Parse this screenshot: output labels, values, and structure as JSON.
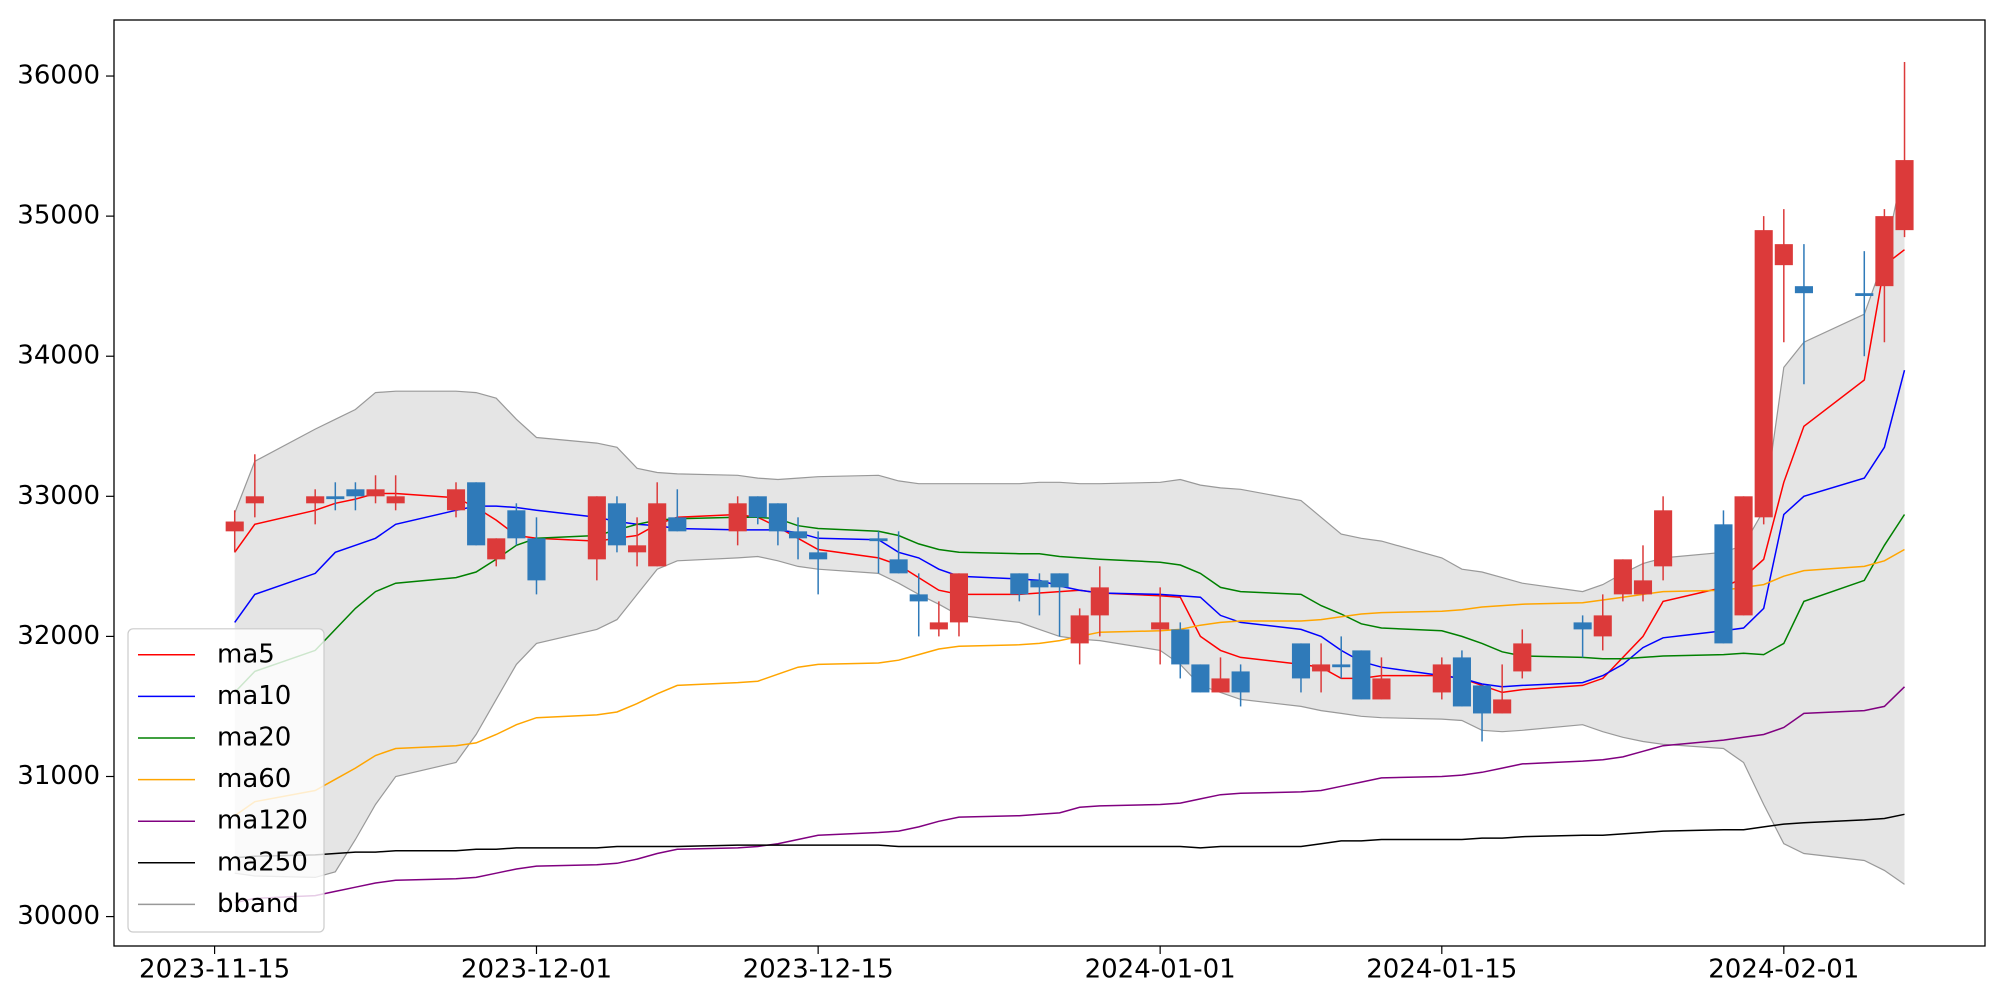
{
  "chart_data": {
    "type": "candlestick",
    "x": [
      "2023-11-16",
      "2023-11-17",
      "2023-11-20",
      "2023-11-21",
      "2023-11-22",
      "2023-11-23",
      "2023-11-24",
      "2023-11-27",
      "2023-11-28",
      "2023-11-29",
      "2023-11-30",
      "2023-12-01",
      "2023-12-04",
      "2023-12-05",
      "2023-12-06",
      "2023-12-07",
      "2023-12-08",
      "2023-12-11",
      "2023-12-12",
      "2023-12-13",
      "2023-12-14",
      "2023-12-15",
      "2023-12-18",
      "2023-12-19",
      "2023-12-20",
      "2023-12-21",
      "2023-12-22",
      "2023-12-25",
      "2023-12-26",
      "2023-12-27",
      "2023-12-28",
      "2023-12-29",
      "2024-01-01",
      "2024-01-02",
      "2024-01-03",
      "2024-01-04",
      "2024-01-05",
      "2024-01-08",
      "2024-01-09",
      "2024-01-10",
      "2024-01-11",
      "2024-01-12",
      "2024-01-15",
      "2024-01-16",
      "2024-01-17",
      "2024-01-18",
      "2024-01-19",
      "2024-01-22",
      "2024-01-23",
      "2024-01-24",
      "2024-01-25",
      "2024-01-26",
      "2024-01-29",
      "2024-01-30",
      "2024-01-31",
      "2024-02-01",
      "2024-02-02",
      "2024-02-05",
      "2024-02-06",
      "2024-02-07"
    ],
    "open": [
      32750,
      32950,
      32950,
      33000,
      33050,
      33000,
      32950,
      32900,
      33100,
      32550,
      32900,
      32700,
      32550,
      32950,
      32600,
      32500,
      32850,
      32750,
      33000,
      32950,
      32750,
      32600,
      32700,
      32550,
      32300,
      32050,
      32100,
      32450,
      32400,
      32450,
      31950,
      32150,
      32050,
      32050,
      31800,
      31600,
      31750,
      31950,
      31750,
      31800,
      31900,
      31550,
      31600,
      31850,
      31650,
      31450,
      31750,
      32100,
      32000,
      32300,
      32300,
      32500,
      32800,
      32150,
      32850,
      34650,
      34500,
      34450,
      34500,
      34900
    ],
    "high": [
      32900,
      33300,
      33050,
      33100,
      33100,
      33150,
      33150,
      33100,
      33100,
      32700,
      32950,
      32850,
      33000,
      33000,
      32850,
      33100,
      33050,
      33000,
      33000,
      32950,
      32850,
      32750,
      32750,
      32750,
      32450,
      32250,
      32450,
      32450,
      32450,
      32450,
      32200,
      32500,
      32350,
      32100,
      31800,
      31850,
      31800,
      31950,
      31950,
      32000,
      31900,
      31850,
      31850,
      31900,
      31650,
      31800,
      32050,
      32150,
      32300,
      32550,
      32650,
      33000,
      32900,
      33000,
      35000,
      35050,
      34800,
      34750,
      35050,
      36100
    ],
    "low": [
      32600,
      32850,
      32800,
      32900,
      32900,
      32950,
      32900,
      32850,
      32650,
      32500,
      32650,
      32300,
      32400,
      32600,
      32500,
      32500,
      32750,
      32650,
      32800,
      32650,
      32550,
      32300,
      32450,
      32450,
      32000,
      32000,
      32000,
      32250,
      32150,
      32000,
      31800,
      32000,
      31800,
      31700,
      31600,
      31600,
      31500,
      31600,
      31600,
      31700,
      31550,
      31550,
      31550,
      31500,
      31250,
      31450,
      31700,
      31850,
      31900,
      32250,
      32250,
      32400,
      31950,
      32150,
      32800,
      34100,
      33800,
      34000,
      34100,
      34850
    ],
    "close": [
      32820,
      33000,
      33000,
      32980,
      33000,
      33050,
      33000,
      33050,
      32650,
      32700,
      32700,
      32400,
      33000,
      32650,
      32650,
      32950,
      32750,
      32950,
      32850,
      32750,
      32700,
      32550,
      32680,
      32450,
      32250,
      32100,
      32450,
      32300,
      32350,
      32350,
      32150,
      32350,
      32100,
      31800,
      31600,
      31700,
      31600,
      31700,
      31800,
      31780,
      31550,
      31700,
      31800,
      31500,
      31450,
      31550,
      31950,
      32050,
      32150,
      32550,
      32400,
      32900,
      31950,
      33000,
      34900,
      34800,
      34450,
      34430,
      35000,
      35400
    ],
    "up_color": "#dc3a3a",
    "down_color": "#2f7ab9",
    "series": [
      {
        "name": "ma5",
        "color": "#ff0000",
        "values": [
          32600,
          32800,
          32900,
          32950,
          32980,
          33020,
          33020,
          32990,
          32920,
          32830,
          32720,
          32700,
          32680,
          32700,
          32720,
          32800,
          32850,
          32870,
          32850,
          32780,
          32700,
          32620,
          32560,
          32510,
          32420,
          32330,
          32300,
          32300,
          32310,
          32320,
          32330,
          32310,
          32290,
          32280,
          32000,
          31900,
          31850,
          31800,
          31780,
          31700,
          31700,
          31720,
          31720,
          31700,
          31650,
          31600,
          31620,
          31650,
          31700,
          31850,
          32000,
          32250,
          32350,
          32420,
          32550,
          33100,
          33500,
          33830,
          34650,
          34760
        ]
      },
      {
        "name": "ma10",
        "color": "#0000ff",
        "values": [
          32100,
          32300,
          32450,
          32600,
          32650,
          32700,
          32800,
          32900,
          32930,
          32930,
          32920,
          32900,
          32850,
          32820,
          32800,
          32790,
          32770,
          32760,
          32760,
          32760,
          32740,
          32700,
          32690,
          32600,
          32560,
          32480,
          32430,
          32410,
          32400,
          32360,
          32330,
          32310,
          32300,
          32290,
          32280,
          32150,
          32100,
          32050,
          32000,
          31900,
          31820,
          31780,
          31720,
          31700,
          31660,
          31640,
          31650,
          31670,
          31720,
          31800,
          31920,
          31990,
          32040,
          32060,
          32200,
          32870,
          33000,
          33130,
          33350,
          33900
        ]
      },
      {
        "name": "ma20",
        "color": "#008000",
        "values": [
          31600,
          31750,
          31900,
          32050,
          32200,
          32320,
          32380,
          32420,
          32460,
          32550,
          32650,
          32700,
          32720,
          32760,
          32800,
          32830,
          32840,
          32850,
          32850,
          32840,
          32790,
          32770,
          32750,
          32720,
          32660,
          32620,
          32600,
          32590,
          32590,
          32570,
          32560,
          32550,
          32530,
          32510,
          32450,
          32350,
          32320,
          32300,
          32220,
          32160,
          32090,
          32060,
          32040,
          32000,
          31950,
          31890,
          31860,
          31850,
          31840,
          31840,
          31850,
          31860,
          31870,
          31880,
          31870,
          31950,
          32250,
          32400,
          32650,
          32870
        ]
      },
      {
        "name": "ma60",
        "color": "#ffa500",
        "values": [
          30720,
          30820,
          30900,
          30980,
          31060,
          31150,
          31200,
          31220,
          31240,
          31300,
          31370,
          31420,
          31440,
          31460,
          31520,
          31590,
          31650,
          31670,
          31680,
          31730,
          31780,
          31800,
          31810,
          31830,
          31870,
          31910,
          31930,
          31940,
          31950,
          31970,
          32000,
          32030,
          32040,
          32050,
          32080,
          32100,
          32110,
          32110,
          32120,
          32140,
          32160,
          32170,
          32180,
          32190,
          32210,
          32220,
          32230,
          32240,
          32260,
          32280,
          32300,
          32320,
          32330,
          32350,
          32370,
          32430,
          32470,
          32500,
          32540,
          32620
        ]
      },
      {
        "name": "ma120",
        "color": "#800080",
        "values": [
          30100,
          30130,
          30150,
          30180,
          30210,
          30240,
          30260,
          30270,
          30280,
          30310,
          30340,
          30360,
          30370,
          30380,
          30410,
          30450,
          30480,
          30490,
          30500,
          30520,
          30550,
          30580,
          30600,
          30610,
          30640,
          30680,
          30710,
          30720,
          30730,
          30740,
          30780,
          30790,
          30800,
          30810,
          30840,
          30870,
          30880,
          30890,
          30900,
          30930,
          30960,
          30990,
          31000,
          31010,
          31030,
          31060,
          31090,
          31110,
          31120,
          31140,
          31180,
          31220,
          31260,
          31280,
          31300,
          31350,
          31450,
          31470,
          31500,
          31640
        ]
      },
      {
        "name": "ma250",
        "color": "#000000",
        "values": [
          30420,
          30430,
          30440,
          30450,
          30460,
          30460,
          30470,
          30470,
          30480,
          30480,
          30490,
          30490,
          30490,
          30500,
          30500,
          30500,
          30500,
          30510,
          30510,
          30510,
          30510,
          30510,
          30510,
          30500,
          30500,
          30500,
          30500,
          30500,
          30500,
          30500,
          30500,
          30500,
          30500,
          30500,
          30490,
          30500,
          30500,
          30500,
          30520,
          30540,
          30540,
          30550,
          30550,
          30550,
          30560,
          30560,
          30570,
          30580,
          30580,
          30590,
          30600,
          30610,
          30620,
          30620,
          30640,
          30660,
          30670,
          30690,
          30700,
          30730
        ]
      }
    ],
    "bband": {
      "name": "bband",
      "color": "#999999",
      "fill": "#e5e5e5",
      "upper": [
        32880,
        33250,
        33480,
        33550,
        33620,
        33740,
        33750,
        33750,
        33740,
        33700,
        33550,
        33420,
        33380,
        33350,
        33200,
        33170,
        33160,
        33150,
        33130,
        33120,
        33130,
        33140,
        33150,
        33110,
        33090,
        33090,
        33090,
        33090,
        33100,
        33100,
        33090,
        33090,
        33100,
        33120,
        33080,
        33060,
        33050,
        32970,
        32850,
        32730,
        32700,
        32680,
        32560,
        32480,
        32460,
        32420,
        32380,
        32320,
        32370,
        32450,
        32520,
        32560,
        32600,
        32650,
        32900,
        33920,
        34100,
        34300,
        34700,
        35380
      ],
      "lower": [
        30310,
        30290,
        30280,
        30320,
        30550,
        30800,
        31000,
        31100,
        31300,
        31550,
        31800,
        31950,
        32050,
        32120,
        32300,
        32480,
        32540,
        32560,
        32570,
        32540,
        32500,
        32480,
        32450,
        32380,
        32300,
        32230,
        32150,
        32100,
        32050,
        32000,
        31980,
        31970,
        31900,
        31800,
        31650,
        31600,
        31550,
        31500,
        31470,
        31450,
        31430,
        31420,
        31410,
        31400,
        31330,
        31320,
        31330,
        31370,
        31320,
        31280,
        31250,
        31230,
        31200,
        31100,
        30800,
        30520,
        30450,
        30400,
        30330,
        30230
      ]
    },
    "xlim": [
      "2023-11-10",
      "2024-02-11"
    ],
    "xticks": [
      "2023-11-15",
      "2023-12-01",
      "2023-12-15",
      "2024-01-01",
      "2024-01-15",
      "2024-02-01"
    ],
    "ylim": [
      29790,
      36400
    ],
    "yticks": [
      30000,
      31000,
      32000,
      33000,
      34000,
      35000,
      36000
    ],
    "legend": "lower left"
  }
}
